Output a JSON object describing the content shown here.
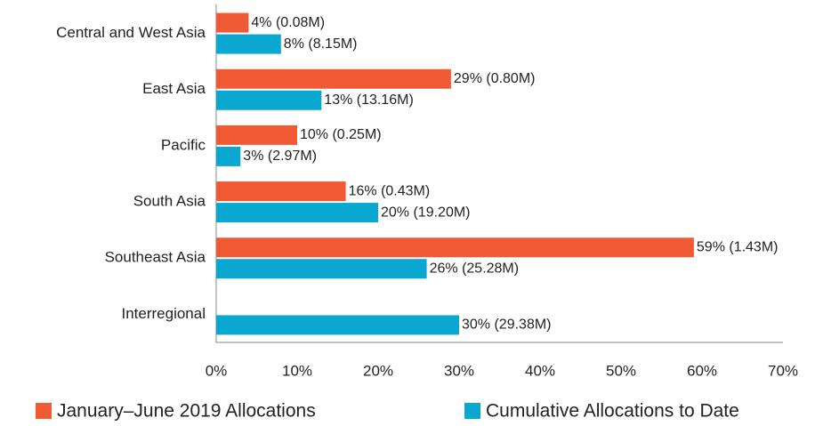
{
  "chart_data": {
    "type": "bar",
    "orientation": "horizontal",
    "categories": [
      "Central and West Asia",
      "East Asia",
      "Pacific",
      "South Asia",
      "Southeast Asia",
      "Interregional"
    ],
    "series": [
      {
        "name": "January–June 2019 Allocations",
        "color": "#f05a35",
        "values": [
          4,
          29,
          10,
          16,
          59,
          null
        ],
        "value_labels": [
          "4% (0.08M)",
          "29% (0.80M)",
          "10% (0.25M)",
          "16% (0.43M)",
          "59% (1.43M)",
          null
        ]
      },
      {
        "name": "Cumulative Allocations to Date",
        "color": "#0aa8d0",
        "values": [
          8,
          13,
          3,
          20,
          26,
          30
        ],
        "value_labels": [
          "8% (8.15M)",
          "13% (13.16M)",
          "3% (2.97M)",
          "20% (19.20M)",
          "26% (25.28M)",
          "30% (29.38M)"
        ]
      }
    ],
    "xlim": [
      0,
      70
    ],
    "xticks": [
      {
        "value": 0,
        "label": "0%"
      },
      {
        "value": 10,
        "label": "10%"
      },
      {
        "value": 20,
        "label": "20%"
      },
      {
        "value": 30,
        "label": "30%"
      },
      {
        "value": 40,
        "label": "40%"
      },
      {
        "value": 50,
        "label": "50%"
      },
      {
        "value": 60,
        "label": "60%"
      },
      {
        "value": 70,
        "label": "70%"
      }
    ],
    "legend": "bottom"
  }
}
